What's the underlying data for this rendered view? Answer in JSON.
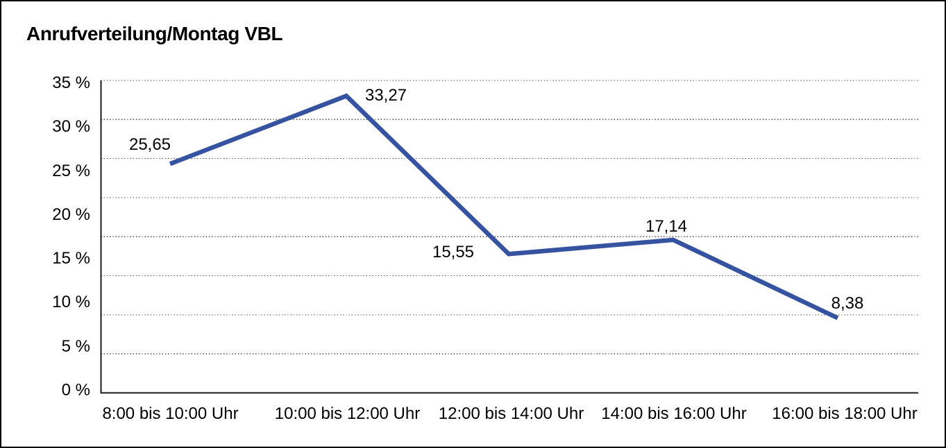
{
  "title": "Anrufverteilung/Montag VBL",
  "colors": {
    "background": "#ffffff",
    "frame_border": "#000000",
    "axis": "#1a1a1a",
    "gridline": "#4a4a4a",
    "series_line": "#3553a0",
    "text": "#000000"
  },
  "chart_data": {
    "type": "line",
    "title": "Anrufverteilung/Montag VBL",
    "categories": [
      "8:00 bis 10:00 Uhr",
      "10:00 bis 12:00 Uhr",
      "12:00 bis 14:00 Uhr",
      "14:00 bis 16:00 Uhr",
      "16:00 bis 18:00 Uhr"
    ],
    "values": [
      25.65,
      33.27,
      15.55,
      17.14,
      8.38
    ],
    "value_labels": [
      "25,65",
      "33,27",
      "15,55",
      "17,14",
      "8,38"
    ],
    "y_ticks": [
      35,
      30,
      25,
      20,
      15,
      10,
      5,
      0
    ],
    "y_tick_labels": [
      "35 %",
      "30 %",
      "25 %",
      "20 %",
      "15 %",
      "10 %",
      "5 %",
      "0 %"
    ],
    "ylim": [
      0,
      35
    ],
    "grid_divisions": 8,
    "grid_style": "dotted",
    "legend_position": "none",
    "xlabel": "",
    "ylabel": ""
  }
}
